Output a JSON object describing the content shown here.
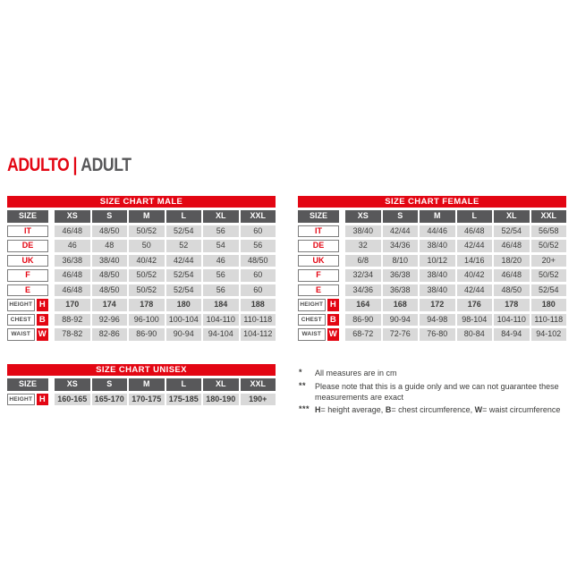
{
  "heading": {
    "primary": "ADULTO",
    "divider": "|",
    "secondary": "ADULT"
  },
  "colors": {
    "accent_red": "#e30613",
    "header_gray": "#58585a",
    "cell_gray": "#d9d9d9",
    "text_dark": "#3c3c3b",
    "white": "#ffffff"
  },
  "tables": [
    {
      "id": "male",
      "title": "SIZE CHART MALE",
      "size_label": "SIZE",
      "columns": [
        "XS",
        "S",
        "M",
        "L",
        "XL",
        "XXL"
      ],
      "rows": [
        {
          "label": "IT",
          "values": [
            "46/48",
            "48/50",
            "50/52",
            "52/54",
            "56",
            "60"
          ]
        },
        {
          "label": "DE",
          "values": [
            "46",
            "48",
            "50",
            "52",
            "54",
            "56"
          ]
        },
        {
          "label": "UK",
          "values": [
            "36/38",
            "38/40",
            "40/42",
            "42/44",
            "46",
            "48/50"
          ]
        },
        {
          "label": "F",
          "values": [
            "46/48",
            "48/50",
            "50/52",
            "52/54",
            "56",
            "60"
          ]
        },
        {
          "label": "E",
          "values": [
            "46/48",
            "48/50",
            "50/52",
            "52/54",
            "56",
            "60"
          ]
        }
      ],
      "measure_rows": [
        {
          "label": "HEIGHT",
          "letter": "H",
          "bold": true,
          "values": [
            "170",
            "174",
            "178",
            "180",
            "184",
            "188"
          ]
        },
        {
          "label": "CHEST",
          "letter": "B",
          "bold": false,
          "values": [
            "88-92",
            "92-96",
            "96-100",
            "100-104",
            "104-110",
            "110-118"
          ]
        },
        {
          "label": "WAIST",
          "letter": "W",
          "bold": false,
          "values": [
            "78-82",
            "82-86",
            "86-90",
            "90-94",
            "94-104",
            "104-112"
          ]
        }
      ]
    },
    {
      "id": "female",
      "title": "SIZE CHART FEMALE",
      "size_label": "SIZE",
      "columns": [
        "XS",
        "S",
        "M",
        "L",
        "XL",
        "XXL"
      ],
      "rows": [
        {
          "label": "IT",
          "values": [
            "38/40",
            "42/44",
            "44/46",
            "46/48",
            "52/54",
            "56/58"
          ]
        },
        {
          "label": "DE",
          "values": [
            "32",
            "34/36",
            "38/40",
            "42/44",
            "46/48",
            "50/52"
          ]
        },
        {
          "label": "UK",
          "values": [
            "6/8",
            "8/10",
            "10/12",
            "14/16",
            "18/20",
            "20+"
          ]
        },
        {
          "label": "F",
          "values": [
            "32/34",
            "36/38",
            "38/40",
            "40/42",
            "46/48",
            "50/52"
          ]
        },
        {
          "label": "E",
          "values": [
            "34/36",
            "36/38",
            "38/40",
            "42/44",
            "48/50",
            "52/54"
          ]
        }
      ],
      "measure_rows": [
        {
          "label": "HEIGHT",
          "letter": "H",
          "bold": true,
          "values": [
            "164",
            "168",
            "172",
            "176",
            "178",
            "180"
          ]
        },
        {
          "label": "CHEST",
          "letter": "B",
          "bold": false,
          "values": [
            "86-90",
            "90-94",
            "94-98",
            "98-104",
            "104-110",
            "110-118"
          ]
        },
        {
          "label": "WAIST",
          "letter": "W",
          "bold": false,
          "values": [
            "68-72",
            "72-76",
            "76-80",
            "80-84",
            "84-94",
            "94-102"
          ]
        }
      ]
    },
    {
      "id": "unisex",
      "title": "SIZE CHART UNISEX",
      "size_label": "SIZE",
      "columns": [
        "XS",
        "S",
        "M",
        "L",
        "XL",
        "XXL"
      ],
      "rows": [],
      "measure_rows": [
        {
          "label": "HEIGHT",
          "letter": "H",
          "bold": true,
          "values": [
            "160-165",
            "165-170",
            "170-175",
            "175-185",
            "180-190",
            "190+"
          ]
        }
      ]
    }
  ],
  "footnotes": [
    {
      "marker": "*",
      "segments": [
        {
          "t": "All measures are in cm"
        }
      ]
    },
    {
      "marker": "**",
      "segments": [
        {
          "t": "Please note that this is a guide only and we can not guarantee these measurements are exact"
        }
      ]
    },
    {
      "marker": "***",
      "segments": [
        {
          "t": "H",
          "b": true
        },
        {
          "t": "= height average, "
        },
        {
          "t": "B",
          "b": true
        },
        {
          "t": "= chest circumference, "
        },
        {
          "t": "W",
          "b": true
        },
        {
          "t": "= waist circumference"
        }
      ]
    }
  ]
}
